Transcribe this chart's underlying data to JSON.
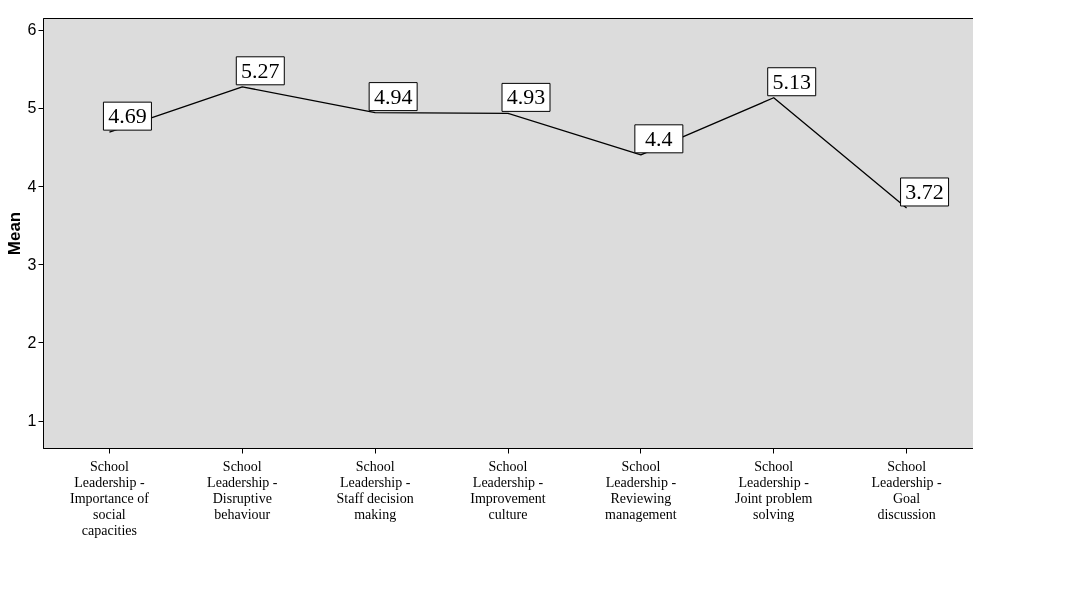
{
  "chart_data": {
    "type": "line",
    "ylabel": "Mean",
    "categories": [
      "School Leadership - Importance of social capacities",
      "School Leadership - Disruptive behaviour",
      "School Leadership - Staff decision making",
      "School Leadership - Improvement culture",
      "School Leadership - Reviewing management",
      "School Leadership - Joint problem solving",
      "School Leadership - Goal discussion"
    ],
    "values": [
      4.69,
      5.27,
      4.94,
      4.93,
      4.4,
      5.13,
      3.72
    ],
    "color": "#000000",
    "ylim": [
      0.65,
      6.15
    ],
    "yticks": [
      1,
      2,
      3,
      4,
      5,
      6
    ],
    "grid": false,
    "marker": "none",
    "line_style": "solid",
    "data_labels": true
  }
}
